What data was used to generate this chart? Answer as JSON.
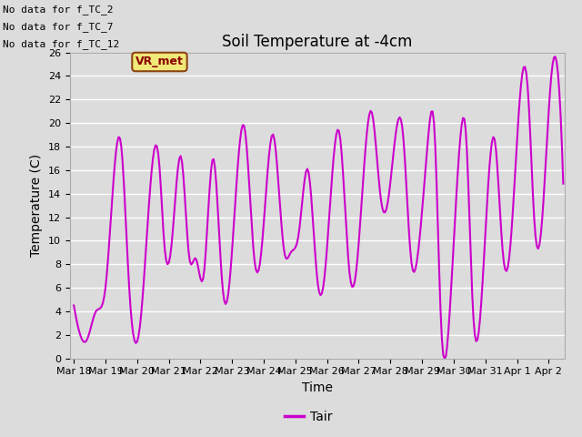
{
  "title": "Soil Temperature at -4cm",
  "xlabel": "Time",
  "ylabel": "Temperature (C)",
  "ylim": [
    0,
    26
  ],
  "yticks": [
    0,
    2,
    4,
    6,
    8,
    10,
    12,
    14,
    16,
    18,
    20,
    22,
    24,
    26
  ],
  "line_color": "#cc00cc",
  "line_width": 1.5,
  "legend_label": "Tair",
  "legend_line_color": "#cc00cc",
  "annotations": [
    "No data for f_TC_2",
    "No data for f_TC_7",
    "No data for f_TC_12"
  ],
  "vr_met_label": "VR_met",
  "background_color": "#dcdcdc",
  "plot_bg_color": "#dcdcdc",
  "x_tick_labels": [
    "Mar 18",
    "Mar 19",
    "Mar 20",
    "Mar 21",
    "Mar 22",
    "Mar 23",
    "Mar 24",
    "Mar 25",
    "Mar 26",
    "Mar 27",
    "Mar 28",
    "Mar 29",
    "Mar 30",
    "Mar 31",
    "Apr 1",
    "Apr 2"
  ],
  "title_fontsize": 12,
  "axis_fontsize": 10,
  "tick_fontsize": 8,
  "annotation_fontsize": 8
}
